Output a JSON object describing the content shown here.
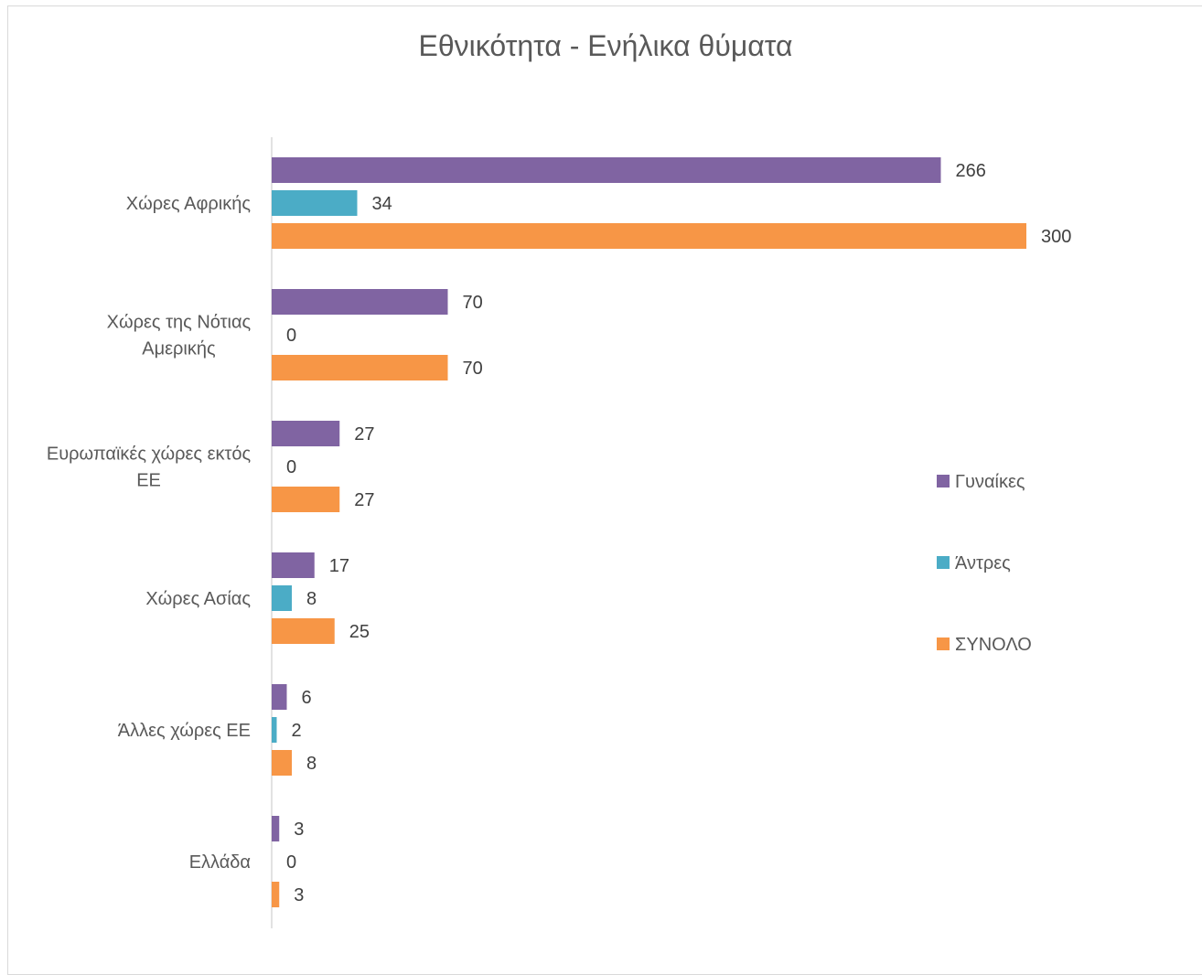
{
  "chart_data": {
    "type": "bar",
    "orientation": "horizontal",
    "title": "Εθνικότητα - Ενήλικα θύματα",
    "categories": [
      [
        "Χώρες Αφρικής"
      ],
      [
        "Χώρες της Νότιας",
        "Αμερικής"
      ],
      [
        "Ευρωπαϊκές χώρες εκτός",
        "ΕΕ"
      ],
      [
        "Χώρες Ασίας"
      ],
      [
        "Άλλες χώρες ΕΕ"
      ],
      [
        "Ελλάδα"
      ]
    ],
    "series": [
      {
        "name": "Γυναίκες",
        "color": "#8064a2",
        "values": [
          266,
          70,
          27,
          17,
          6,
          3
        ]
      },
      {
        "name": "Άντρες",
        "color": "#4bacc6",
        "values": [
          34,
          0,
          0,
          8,
          2,
          0
        ]
      },
      {
        "name": "ΣΥΝΟΛΟ",
        "color": "#f79646",
        "values": [
          300,
          70,
          27,
          25,
          8,
          3
        ]
      }
    ],
    "xlim": [
      0,
      300
    ],
    "grid": false,
    "legend": "right"
  }
}
